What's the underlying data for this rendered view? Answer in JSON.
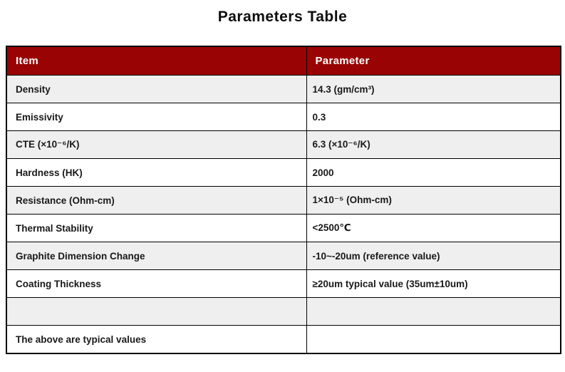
{
  "page": {
    "title": "Parameters Table"
  },
  "theme": {
    "header_bg": "#9a0303",
    "header_text": "#ffffff",
    "row_alt_bg": "#efefef",
    "border_color": "#000000"
  },
  "table": {
    "headers": {
      "item": "Item",
      "parameter": "Parameter"
    },
    "rows": [
      {
        "item": "Density",
        "parameter": "14.3 (gm/cm³)"
      },
      {
        "item": "Emissivity",
        "parameter": "0.3"
      },
      {
        "item": "CTE (×10⁻⁶/K)",
        "parameter": "6.3 (×10⁻⁶/K)"
      },
      {
        "item": "Hardness (HK)",
        "parameter": "2000"
      },
      {
        "item": "Resistance (Ohm-cm)",
        "parameter": "1×10⁻⁵ (Ohm-cm)"
      },
      {
        "item": "Thermal Stability",
        "parameter": "<2500℃"
      },
      {
        "item": "Graphite Dimension Change",
        "parameter": "-10~-20um (reference value)"
      },
      {
        "item": "Coating Thickness",
        "parameter": "≥20um typical value (35um±10um)"
      },
      {
        "item": "",
        "parameter": ""
      },
      {
        "item": "The above are typical values",
        "parameter": ""
      }
    ]
  },
  "chart_data": {
    "type": "table",
    "title": "Parameters Table",
    "columns": [
      "Item",
      "Parameter"
    ],
    "rows": [
      [
        "Density",
        "14.3 (gm/cm³)"
      ],
      [
        "Emissivity",
        "0.3"
      ],
      [
        "CTE (×10⁻⁶/K)",
        "6.3 (×10⁻⁶/K)"
      ],
      [
        "Hardness (HK)",
        "2000"
      ],
      [
        "Resistance (Ohm-cm)",
        "1×10⁻⁵ (Ohm-cm)"
      ],
      [
        "Thermal Stability",
        "<2500℃"
      ],
      [
        "Graphite Dimension Change",
        "-10~-20um (reference value)"
      ],
      [
        "Coating Thickness",
        "≥20um typical value (35um±10um)"
      ],
      [
        "",
        ""
      ],
      [
        "The above are typical values",
        ""
      ]
    ]
  }
}
